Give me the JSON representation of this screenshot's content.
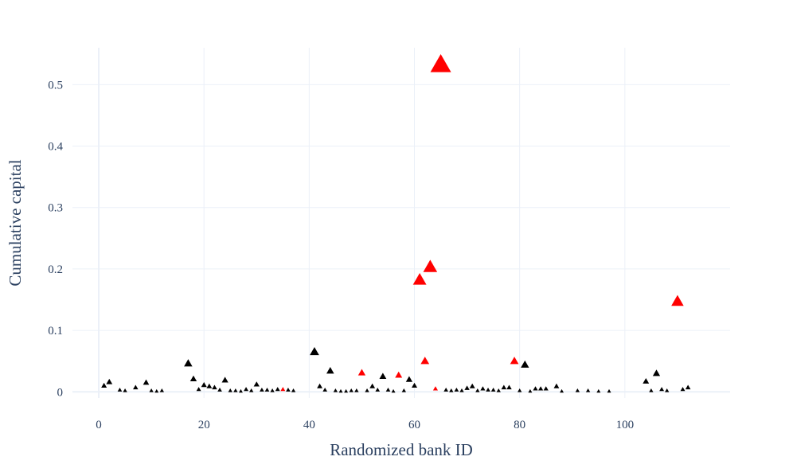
{
  "chart_data": {
    "type": "scatter",
    "marker": "triangle-up",
    "xlabel": "Randomized bank ID",
    "ylabel": "Cumulative capital",
    "xlim": [
      -5,
      120
    ],
    "ylim": [
      -0.01,
      0.56
    ],
    "x_ticks": [
      0,
      20,
      40,
      60,
      80,
      100
    ],
    "x_tick_labels": [
      "0",
      "20",
      "40",
      "60",
      "80",
      "100"
    ],
    "y_ticks": [
      0,
      0.1,
      0.2,
      0.3,
      0.4,
      0.5
    ],
    "y_tick_labels": [
      "0",
      "0.1",
      "0.2",
      "0.3",
      "0.4",
      "0.5"
    ],
    "grid": true,
    "colors": {
      "highlighted": "#ff0000",
      "normal": "#000000",
      "grid": "#ebf0f8",
      "text": "#2a3f5f"
    },
    "points": [
      {
        "x": 1,
        "y": 0.01,
        "highlighted": false
      },
      {
        "x": 2,
        "y": 0.016,
        "highlighted": false
      },
      {
        "x": 4,
        "y": 0.003,
        "highlighted": false
      },
      {
        "x": 5,
        "y": 0.002,
        "highlighted": false
      },
      {
        "x": 7,
        "y": 0.007,
        "highlighted": false
      },
      {
        "x": 9,
        "y": 0.015,
        "highlighted": false
      },
      {
        "x": 10,
        "y": 0.002,
        "highlighted": false
      },
      {
        "x": 11,
        "y": 0.001,
        "highlighted": false
      },
      {
        "x": 12,
        "y": 0.002,
        "highlighted": false
      },
      {
        "x": 17,
        "y": 0.046,
        "highlighted": false
      },
      {
        "x": 18,
        "y": 0.021,
        "highlighted": false
      },
      {
        "x": 19,
        "y": 0.004,
        "highlighted": false
      },
      {
        "x": 20,
        "y": 0.011,
        "highlighted": false
      },
      {
        "x": 21,
        "y": 0.009,
        "highlighted": false
      },
      {
        "x": 22,
        "y": 0.007,
        "highlighted": false
      },
      {
        "x": 23,
        "y": 0.003,
        "highlighted": false
      },
      {
        "x": 24,
        "y": 0.019,
        "highlighted": false
      },
      {
        "x": 25,
        "y": 0.002,
        "highlighted": false
      },
      {
        "x": 26,
        "y": 0.002,
        "highlighted": false
      },
      {
        "x": 27,
        "y": 0.001,
        "highlighted": false
      },
      {
        "x": 28,
        "y": 0.004,
        "highlighted": false
      },
      {
        "x": 29,
        "y": 0.002,
        "highlighted": false
      },
      {
        "x": 30,
        "y": 0.012,
        "highlighted": false
      },
      {
        "x": 31,
        "y": 0.003,
        "highlighted": false
      },
      {
        "x": 32,
        "y": 0.003,
        "highlighted": false
      },
      {
        "x": 33,
        "y": 0.002,
        "highlighted": false
      },
      {
        "x": 34,
        "y": 0.004,
        "highlighted": false
      },
      {
        "x": 35,
        "y": 0.004,
        "highlighted": true
      },
      {
        "x": 36,
        "y": 0.003,
        "highlighted": false
      },
      {
        "x": 37,
        "y": 0.002,
        "highlighted": false
      },
      {
        "x": 41,
        "y": 0.065,
        "highlighted": false
      },
      {
        "x": 42,
        "y": 0.009,
        "highlighted": false
      },
      {
        "x": 43,
        "y": 0.003,
        "highlighted": false
      },
      {
        "x": 44,
        "y": 0.034,
        "highlighted": false
      },
      {
        "x": 45,
        "y": 0.002,
        "highlighted": false
      },
      {
        "x": 46,
        "y": 0.001,
        "highlighted": false
      },
      {
        "x": 47,
        "y": 0.001,
        "highlighted": false
      },
      {
        "x": 48,
        "y": 0.002,
        "highlighted": false
      },
      {
        "x": 49,
        "y": 0.002,
        "highlighted": false
      },
      {
        "x": 50,
        "y": 0.031,
        "highlighted": true
      },
      {
        "x": 51,
        "y": 0.002,
        "highlighted": false
      },
      {
        "x": 52,
        "y": 0.009,
        "highlighted": false
      },
      {
        "x": 53,
        "y": 0.003,
        "highlighted": false
      },
      {
        "x": 54,
        "y": 0.025,
        "highlighted": false
      },
      {
        "x": 55,
        "y": 0.003,
        "highlighted": false
      },
      {
        "x": 56,
        "y": 0.001,
        "highlighted": false
      },
      {
        "x": 57,
        "y": 0.027,
        "highlighted": true
      },
      {
        "x": 58,
        "y": 0.002,
        "highlighted": false
      },
      {
        "x": 59,
        "y": 0.02,
        "highlighted": false
      },
      {
        "x": 60,
        "y": 0.01,
        "highlighted": false
      },
      {
        "x": 61,
        "y": 0.182,
        "highlighted": true
      },
      {
        "x": 62,
        "y": 0.05,
        "highlighted": true
      },
      {
        "x": 63,
        "y": 0.203,
        "highlighted": true
      },
      {
        "x": 64,
        "y": 0.005,
        "highlighted": true
      },
      {
        "x": 65,
        "y": 0.532,
        "highlighted": true
      },
      {
        "x": 66,
        "y": 0.003,
        "highlighted": false
      },
      {
        "x": 67,
        "y": 0.002,
        "highlighted": false
      },
      {
        "x": 68,
        "y": 0.003,
        "highlighted": false
      },
      {
        "x": 69,
        "y": 0.002,
        "highlighted": false
      },
      {
        "x": 70,
        "y": 0.006,
        "highlighted": false
      },
      {
        "x": 71,
        "y": 0.009,
        "highlighted": false
      },
      {
        "x": 72,
        "y": 0.002,
        "highlighted": false
      },
      {
        "x": 73,
        "y": 0.005,
        "highlighted": false
      },
      {
        "x": 74,
        "y": 0.003,
        "highlighted": false
      },
      {
        "x": 75,
        "y": 0.003,
        "highlighted": false
      },
      {
        "x": 76,
        "y": 0.002,
        "highlighted": false
      },
      {
        "x": 77,
        "y": 0.007,
        "highlighted": false
      },
      {
        "x": 78,
        "y": 0.007,
        "highlighted": false
      },
      {
        "x": 79,
        "y": 0.05,
        "highlighted": true
      },
      {
        "x": 80,
        "y": 0.002,
        "highlighted": false
      },
      {
        "x": 81,
        "y": 0.044,
        "highlighted": false
      },
      {
        "x": 82,
        "y": 0.001,
        "highlighted": false
      },
      {
        "x": 83,
        "y": 0.005,
        "highlighted": false
      },
      {
        "x": 84,
        "y": 0.005,
        "highlighted": false
      },
      {
        "x": 85,
        "y": 0.005,
        "highlighted": false
      },
      {
        "x": 87,
        "y": 0.009,
        "highlighted": false
      },
      {
        "x": 88,
        "y": 0.001,
        "highlighted": false
      },
      {
        "x": 91,
        "y": 0.002,
        "highlighted": false
      },
      {
        "x": 93,
        "y": 0.002,
        "highlighted": false
      },
      {
        "x": 95,
        "y": 0.001,
        "highlighted": false
      },
      {
        "x": 97,
        "y": 0.001,
        "highlighted": false
      },
      {
        "x": 104,
        "y": 0.017,
        "highlighted": false
      },
      {
        "x": 105,
        "y": 0.002,
        "highlighted": false
      },
      {
        "x": 106,
        "y": 0.03,
        "highlighted": false
      },
      {
        "x": 107,
        "y": 0.004,
        "highlighted": false
      },
      {
        "x": 108,
        "y": 0.002,
        "highlighted": false
      },
      {
        "x": 110,
        "y": 0.147,
        "highlighted": true
      },
      {
        "x": 111,
        "y": 0.004,
        "highlighted": false
      },
      {
        "x": 112,
        "y": 0.007,
        "highlighted": false
      }
    ]
  }
}
